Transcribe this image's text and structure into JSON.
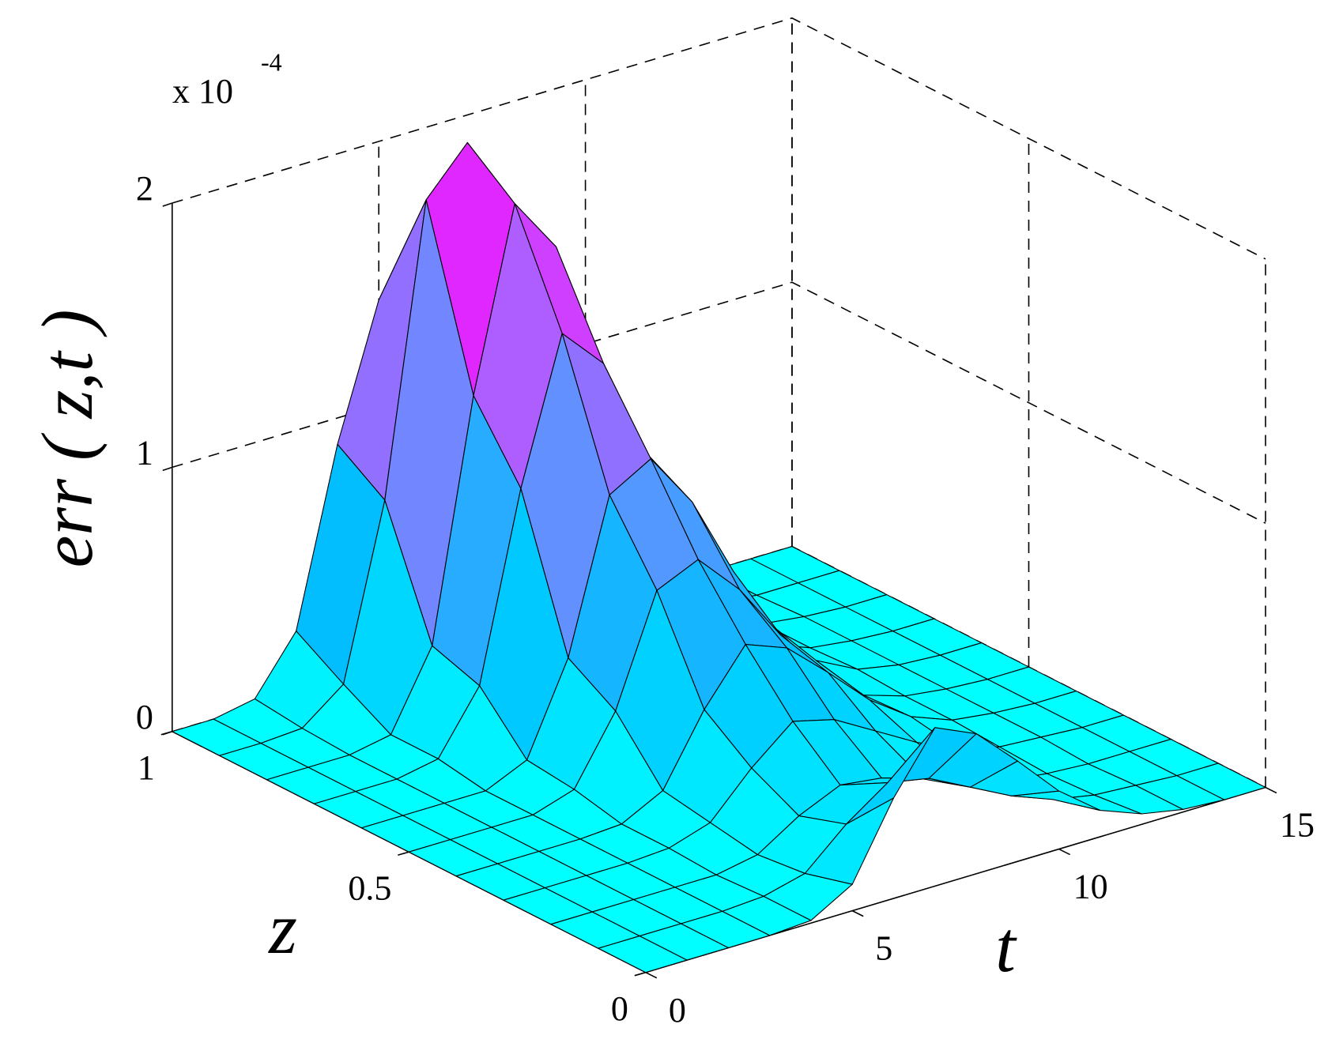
{
  "chart_data": {
    "type": "surface",
    "xlabel": "t",
    "ylabel": "z",
    "zlabel": "err ( z,t )",
    "multiplier": "x 10",
    "multiplier_exponent": "-4",
    "x": [
      0,
      1,
      2,
      3,
      4,
      5,
      6,
      7,
      8,
      9,
      10,
      11,
      12,
      13,
      14,
      15
    ],
    "y": [
      0,
      0.1,
      0.2,
      0.3,
      0.4,
      0.5,
      0.6,
      0.7,
      0.8,
      0.9,
      1
    ],
    "values": [
      [
        0,
        0,
        0,
        0,
        0.01,
        0.1,
        0.38,
        0.6,
        0.53,
        0.38,
        0.22,
        0.1,
        0.04,
        0.01,
        0,
        0
      ],
      [
        0,
        0,
        0,
        0,
        0.01,
        0.05,
        0.19,
        0.3,
        0.27,
        0.19,
        0.11,
        0.05,
        0.02,
        0.01,
        0,
        0
      ],
      [
        0,
        0,
        0,
        0,
        0,
        0.03,
        0.13,
        0.2,
        0.18,
        0.13,
        0.07,
        0.03,
        0.01,
        0,
        0,
        0
      ],
      [
        0,
        0,
        0,
        0,
        0.01,
        0.06,
        0.22,
        0.35,
        0.31,
        0.22,
        0.13,
        0.06,
        0.02,
        0.01,
        0,
        0
      ],
      [
        0,
        0,
        0,
        0,
        0.01,
        0.09,
        0.35,
        0.55,
        0.49,
        0.35,
        0.2,
        0.09,
        0.03,
        0.01,
        0,
        0
      ],
      [
        0,
        0,
        0,
        0,
        0.05,
        0.3,
        0.71,
        0.78,
        0.62,
        0.4,
        0.21,
        0.08,
        0.03,
        0.01,
        0,
        0
      ],
      [
        0,
        0,
        0,
        0,
        0.07,
        0.41,
        0.98,
        1.07,
        0.86,
        0.55,
        0.29,
        0.12,
        0.04,
        0.01,
        0,
        0
      ],
      [
        0,
        0,
        0,
        0.03,
        0.26,
        0.96,
        1.5,
        1.34,
        0.96,
        0.56,
        0.26,
        0.09,
        0.03,
        0.01,
        0,
        0
      ],
      [
        0,
        0,
        0,
        0.03,
        0.32,
        1.22,
        1.9,
        1.69,
        1.22,
        0.7,
        0.32,
        0.12,
        0.03,
        0.01,
        0,
        0
      ],
      [
        0,
        0,
        0.01,
        0.13,
        0.78,
        1.87,
        2.04,
        1.64,
        1.05,
        0.55,
        0.22,
        0.07,
        0.02,
        0,
        0,
        0
      ],
      [
        0,
        0,
        0.03,
        0.24,
        0.9,
        1.4,
        1.25,
        0.9,
        0.52,
        0.24,
        0.09,
        0.03,
        0.01,
        0,
        0,
        0
      ]
    ],
    "xlim": [
      0,
      15
    ],
    "xticks": [
      0,
      5,
      10,
      15
    ],
    "ylim": [
      0,
      1
    ],
    "yticks": [
      0,
      0.5,
      1
    ],
    "zlim": [
      0,
      2
    ],
    "zticks": [
      0,
      1,
      2
    ],
    "grid": true,
    "colormap": [
      "#00ffff",
      "#00bfff",
      "#6a8cff",
      "#c050ff",
      "#ff00ff"
    ],
    "edge_color": "#000000"
  }
}
